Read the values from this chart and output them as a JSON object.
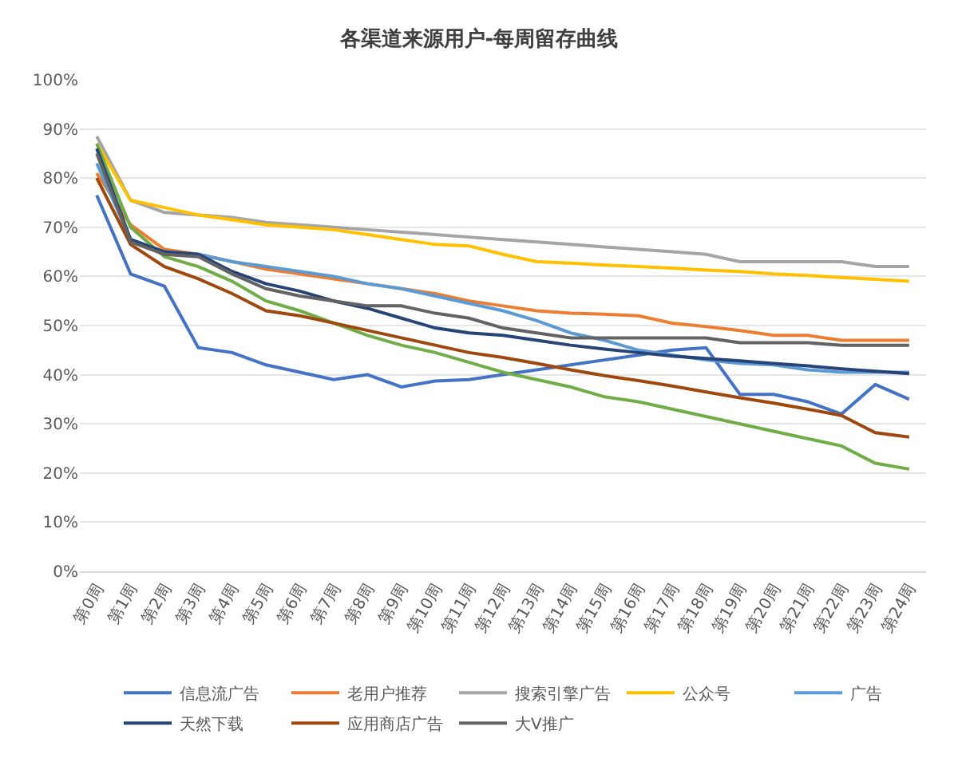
{
  "chart_data": {
    "type": "line",
    "title": "各渠道来源用户-每周留存曲线",
    "categories": [
      "第0周",
      "第1周",
      "第2周",
      "第3周",
      "第4周",
      "第5周",
      "第6周",
      "第7周",
      "第8周",
      "第9周",
      "第10周",
      "第11周",
      "第12周",
      "第13周",
      "第14周",
      "第15周",
      "第16周",
      "第17周",
      "第18周",
      "第19周",
      "第20周",
      "第21周",
      "第22周",
      "第23周",
      "第24周"
    ],
    "ylim": [
      0,
      100
    ],
    "yticks": [
      {
        "value": 0,
        "label": "0%"
      },
      {
        "value": 10,
        "label": "10%"
      },
      {
        "value": 20,
        "label": "20%"
      },
      {
        "value": 30,
        "label": "30%"
      },
      {
        "value": 40,
        "label": "40%"
      },
      {
        "value": 50,
        "label": "50%"
      },
      {
        "value": 60,
        "label": "60%"
      },
      {
        "value": 70,
        "label": "70%"
      },
      {
        "value": 80,
        "label": "80%"
      },
      {
        "value": 90,
        "label": "90%"
      },
      {
        "value": 100,
        "label": "100%"
      }
    ],
    "grid": "y",
    "legend": "bottom",
    "marker": "none",
    "line_style": "solid",
    "series": [
      {
        "name": "信息流广告",
        "color": "#4472c4",
        "values": [
          76.5,
          60.5,
          58,
          45.5,
          44.5,
          42,
          40.5,
          39,
          40,
          37.5,
          38.7,
          39,
          40,
          41,
          42,
          43,
          44,
          45,
          45.5,
          36,
          36,
          34.5,
          32,
          38,
          35
        ]
      },
      {
        "name": "老用户推荐",
        "color": "#ed7d31",
        "values": [
          81,
          70.5,
          65.5,
          64.5,
          63,
          61.5,
          60.5,
          59.5,
          58.5,
          57.5,
          56.5,
          55,
          54,
          53,
          52.5,
          52.3,
          52,
          50.5,
          49.8,
          49,
          48,
          48,
          47,
          47,
          47
        ]
      },
      {
        "name": "搜索引擎广告",
        "color": "#a5a5a5",
        "values": [
          88.5,
          75.5,
          73,
          72.5,
          72,
          71,
          70.5,
          70,
          69.5,
          69,
          68.5,
          68,
          67.5,
          67,
          66.5,
          66,
          65.5,
          65,
          64.5,
          63,
          63,
          63,
          63,
          62,
          62
        ]
      },
      {
        "name": "公众号",
        "color": "#ffc000",
        "values": [
          87,
          75.5,
          74,
          72.5,
          71.5,
          70.5,
          70,
          69.5,
          68.5,
          67.5,
          66.5,
          66.2,
          64.5,
          63,
          62.7,
          62.3,
          62,
          61.7,
          61.3,
          61,
          60.5,
          60.2,
          59.8,
          59.4,
          59
        ]
      },
      {
        "name": "广告",
        "color": "#5b9bd5",
        "values": [
          83,
          67.5,
          65,
          64.5,
          63,
          62,
          61,
          60,
          58.5,
          57.5,
          56,
          54.5,
          53,
          51,
          48.5,
          47,
          45,
          44,
          43,
          42.3,
          42,
          41,
          40.5,
          40.5,
          40.5
        ]
      },
      {
        "color": "#70ad47",
        "values": [
          87,
          70,
          64,
          62,
          59,
          55,
          53,
          50.5,
          48,
          46,
          44.5,
          42.5,
          40.5,
          39,
          37.5,
          35.5,
          34.5,
          33,
          31.5,
          30,
          28.5,
          27,
          25.5,
          22,
          20.8
        ]
      },
      {
        "name": "天然下载",
        "color": "#264478",
        "values": [
          86,
          67.5,
          65,
          64.5,
          61,
          58.5,
          57,
          55,
          53.5,
          51.5,
          49.5,
          48.5,
          48,
          47,
          46,
          45.2,
          44.5,
          43.8,
          43.3,
          42.8,
          42.3,
          41.8,
          41.2,
          40.7,
          40.2
        ]
      },
      {
        "name": "应用商店广告",
        "color": "#9e480e",
        "values": [
          80,
          66.5,
          62,
          59.5,
          56.5,
          53,
          52,
          50.5,
          49,
          47.5,
          46,
          44.5,
          43.5,
          42.3,
          41,
          39.8,
          38.8,
          37.7,
          36.5,
          35.3,
          34.2,
          33,
          31.7,
          28.2,
          27.3
        ]
      },
      {
        "name": "大V推广",
        "color": "#636363",
        "values": [
          85,
          67,
          64.5,
          64,
          60.5,
          57.5,
          56,
          55,
          54,
          54,
          52.5,
          51.5,
          49.5,
          48.5,
          47.5,
          47.5,
          47.5,
          47.5,
          47.5,
          46.5,
          46.5,
          46.5,
          46,
          46,
          46
        ]
      }
    ]
  }
}
